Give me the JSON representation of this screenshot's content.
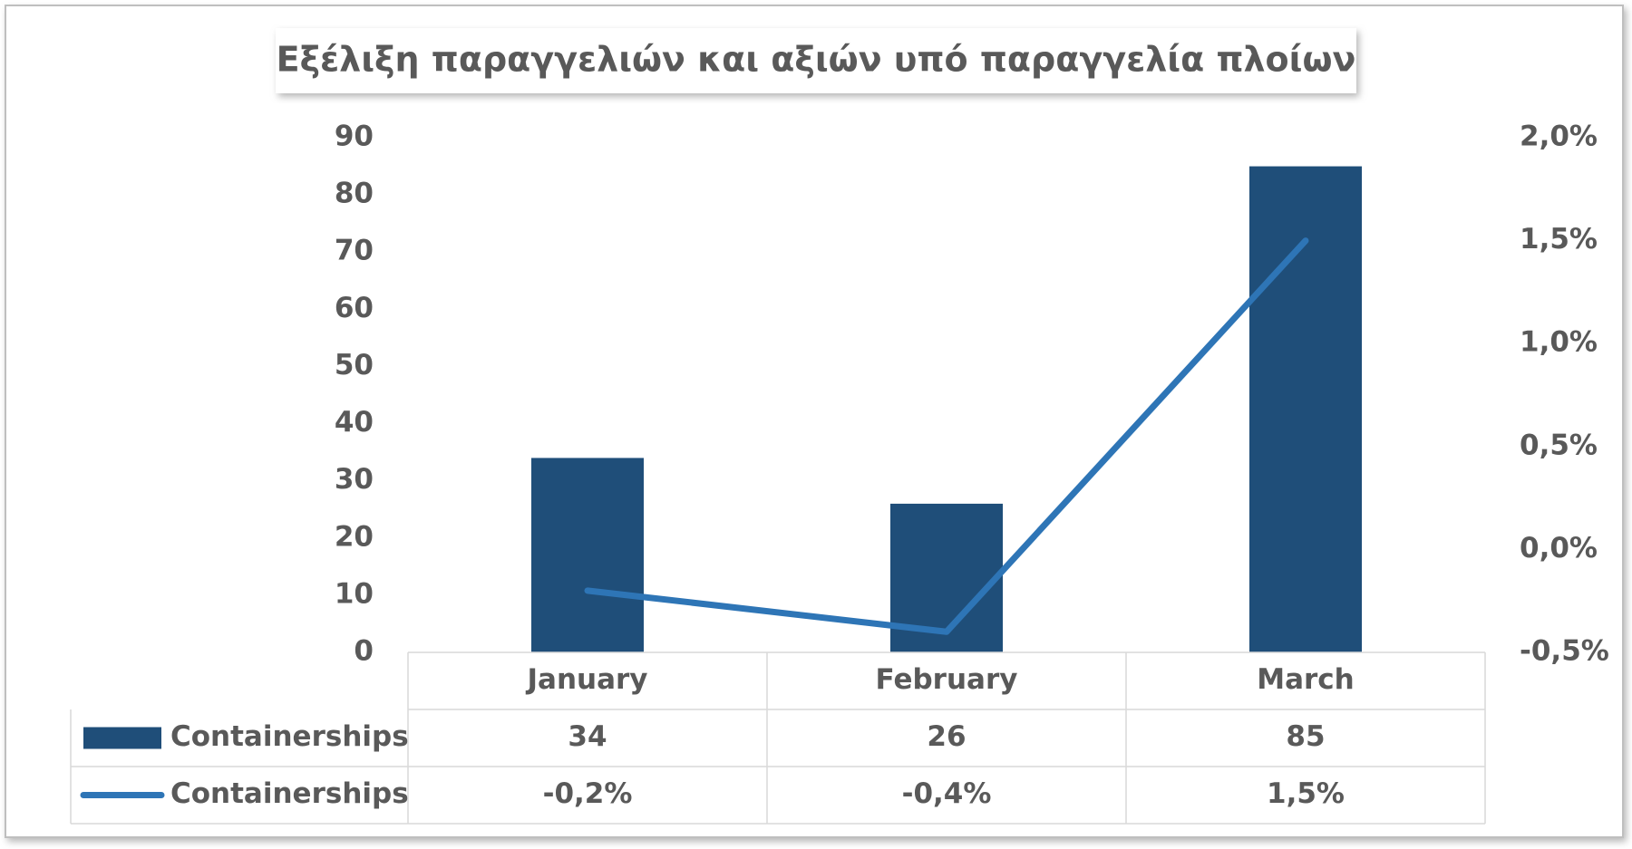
{
  "chart_data": {
    "type": "combo",
    "title": "Εξέλιξη παραγγελιών και αξιών υπό παραγγελία πλοίων",
    "categories": [
      "January",
      "February",
      "March"
    ],
    "series": [
      {
        "name": "Containerships",
        "type": "bar",
        "color": "#1f4e79",
        "values": [
          34,
          26,
          85
        ]
      },
      {
        "name": "Containerships",
        "type": "line",
        "axis": "y2",
        "color": "#2e75b6",
        "values": [
          -0.2,
          -0.4,
          1.5
        ],
        "value_labels": [
          "-0,2%",
          "-0,4%",
          "1,5%"
        ]
      }
    ],
    "ylim": [
      0,
      90
    ],
    "yticks": [
      0,
      10,
      20,
      30,
      40,
      50,
      60,
      70,
      80,
      90
    ],
    "y2lim": [
      -0.5,
      2.0
    ],
    "y2ticks": [
      {
        "value": -0.5,
        "label": "-0,5%"
      },
      {
        "value": 0.0,
        "label": "0,0%"
      },
      {
        "value": 0.5,
        "label": "0,5%"
      },
      {
        "value": 1.0,
        "label": "1,0%"
      },
      {
        "value": 1.5,
        "label": "1,5%"
      },
      {
        "value": 2.0,
        "label": "2,0%"
      }
    ],
    "data_table": true
  }
}
